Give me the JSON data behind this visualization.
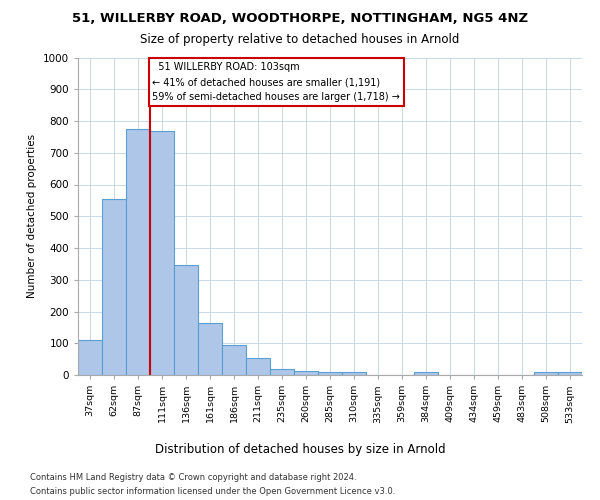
{
  "title1": "51, WILLERBY ROAD, WOODTHORPE, NOTTINGHAM, NG5 4NZ",
  "title2": "Size of property relative to detached houses in Arnold",
  "xlabel": "Distribution of detached houses by size in Arnold",
  "ylabel": "Number of detached properties",
  "categories": [
    "37sqm",
    "62sqm",
    "87sqm",
    "111sqm",
    "136sqm",
    "161sqm",
    "186sqm",
    "211sqm",
    "235sqm",
    "260sqm",
    "285sqm",
    "310sqm",
    "335sqm",
    "359sqm",
    "384sqm",
    "409sqm",
    "434sqm",
    "459sqm",
    "483sqm",
    "508sqm",
    "533sqm"
  ],
  "values": [
    110,
    555,
    775,
    770,
    345,
    163,
    95,
    52,
    18,
    13,
    10,
    10,
    0,
    0,
    8,
    0,
    0,
    0,
    0,
    10,
    10
  ],
  "bar_color": "#aec6e8",
  "bar_edge_color": "#5a9fd4",
  "background_color": "#ffffff",
  "grid_color": "#c8d8e8",
  "red_line_x": 2.5,
  "annotation_text": "  51 WILLERBY ROAD: 103sqm\n← 41% of detached houses are smaller (1,191)\n59% of semi-detached houses are larger (1,718) →",
  "annotation_box_color": "#ffffff",
  "annotation_box_edge": "#cc0000",
  "red_line_color": "#cc0000",
  "ylim": [
    0,
    1000
  ],
  "yticks": [
    0,
    100,
    200,
    300,
    400,
    500,
    600,
    700,
    800,
    900,
    1000
  ],
  "footer1": "Contains HM Land Registry data © Crown copyright and database right 2024.",
  "footer2": "Contains public sector information licensed under the Open Government Licence v3.0."
}
